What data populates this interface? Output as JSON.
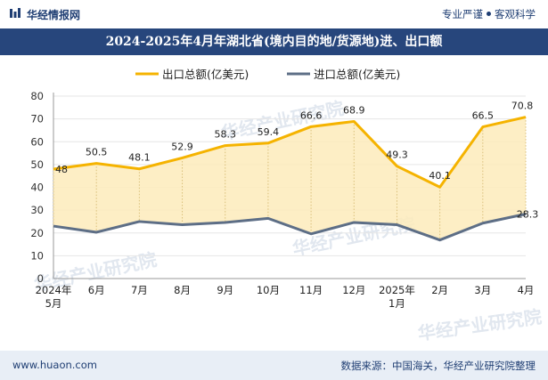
{
  "header": {
    "brand": "华经情报网",
    "tagline_left": "专业严谨",
    "tagline_right": "客观科学"
  },
  "title": "2024-2025年4月年湖北省(境内目的地/货源地)进、出口额",
  "footer": {
    "url": "www.huaon.com",
    "source": "数据来源：中国海关，华经产业研究院整理"
  },
  "watermark": "华经产业研究院",
  "colors": {
    "export": "#f5b300",
    "export_fill": "#fdebbb",
    "import": "#5d6e86",
    "title_bg": "#27467c"
  },
  "chart_data": {
    "type": "line",
    "categories": [
      "2024年\n5月",
      "6月",
      "7月",
      "8月",
      "9月",
      "10月",
      "11月",
      "12月",
      "2025年\n1月",
      "2月",
      "3月",
      "4月"
    ],
    "series": [
      {
        "name": "出口总额(亿美元)",
        "values": [
          48,
          50.5,
          48.1,
          52.9,
          58.3,
          59.4,
          66.6,
          68.9,
          49.3,
          40.1,
          66.5,
          70.8
        ],
        "labels": [
          "48",
          "50.5",
          "48.1",
          "52.9",
          "58.3",
          "59.4",
          "66.6",
          "68.9",
          "49.3",
          "40.1",
          "66.5",
          "70.8"
        ]
      },
      {
        "name": "进口总额(亿美元)",
        "values": [
          23,
          20.3,
          25,
          23.6,
          24.6,
          26.4,
          19.6,
          24.6,
          23.6,
          16.9,
          24.3,
          28.3
        ],
        "labels": [
          "",
          "",
          "",
          "",
          "",
          "",
          "",
          "",
          "",
          "",
          "",
          "28.3"
        ]
      }
    ],
    "ylim": [
      0,
      80
    ],
    "yticks": [
      0,
      10,
      20,
      30,
      40,
      50,
      60,
      70,
      80
    ],
    "legend": "top-center",
    "grid": true
  }
}
